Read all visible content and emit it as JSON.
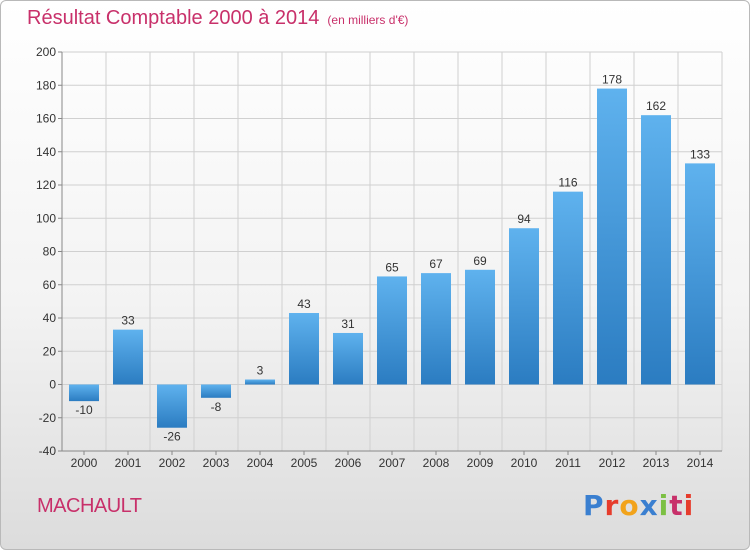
{
  "header": {
    "title": "Résultat Comptable 2000 à 2014",
    "subtitle": "(en milliers d'€)"
  },
  "footer": {
    "place": "MACHAULT",
    "brand": "Proxiti",
    "brand_colors": [
      "#3a7fd0",
      "#e63c2c",
      "#f2a31b",
      "#3a7fd0",
      "#7cc043",
      "#c8306a",
      "#e63c2c"
    ]
  },
  "colors": {
    "bar_top": "#5fb2ee",
    "bar_bottom": "#2b7cc1",
    "grid": "#d0d0d0",
    "accent": "#c8306a"
  },
  "chart_data": {
    "type": "bar",
    "categories": [
      "2000",
      "2001",
      "2002",
      "2003",
      "2004",
      "2005",
      "2006",
      "2007",
      "2008",
      "2009",
      "2010",
      "2011",
      "2012",
      "2013",
      "2014"
    ],
    "values": [
      -10,
      33,
      -26,
      -8,
      3,
      43,
      31,
      65,
      67,
      69,
      94,
      116,
      178,
      162,
      133
    ],
    "labels": [
      "-10",
      "33",
      "-26",
      "-8",
      "3",
      "43",
      "31",
      "65",
      "67",
      "69",
      "94",
      "116",
      "178",
      "162",
      "133"
    ],
    "ylim": [
      -40,
      200
    ],
    "yticks": [
      -40,
      -20,
      0,
      20,
      40,
      60,
      80,
      100,
      120,
      140,
      160,
      180,
      200
    ],
    "grid": true
  }
}
